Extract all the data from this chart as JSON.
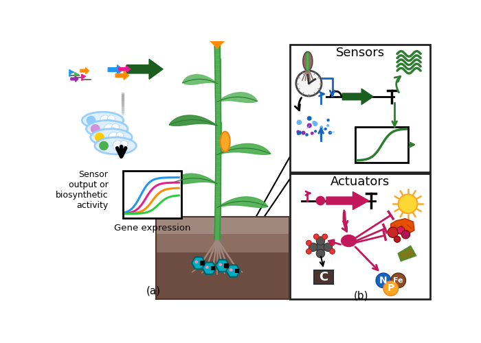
{
  "label_a": "(a)",
  "label_b": "(b)",
  "sensors_label": "Sensors",
  "actuators_label": "Actuators",
  "sensor_output_text": "Sensor\noutput or\nbiosynthetic\nactivity",
  "gene_expression_text": "Gene expression",
  "sigmoid_colors": [
    "#2196F3",
    "#E91E8C",
    "#FF8C00",
    "#2ECC40"
  ],
  "background": "#ffffff",
  "blue": "#1565C0",
  "dark_green": "#1B5E20",
  "pink": "#C2185B",
  "N_color": "#1565C0",
  "Fe_color": "#8D4E2A",
  "P_color": "#F9A825",
  "carbon_grey": "#555555",
  "soil_dark": "#5D4037",
  "soil_light": "#8D6E63",
  "bacteria_blue": "#00ACC1",
  "bacteria_teal": "#006064"
}
